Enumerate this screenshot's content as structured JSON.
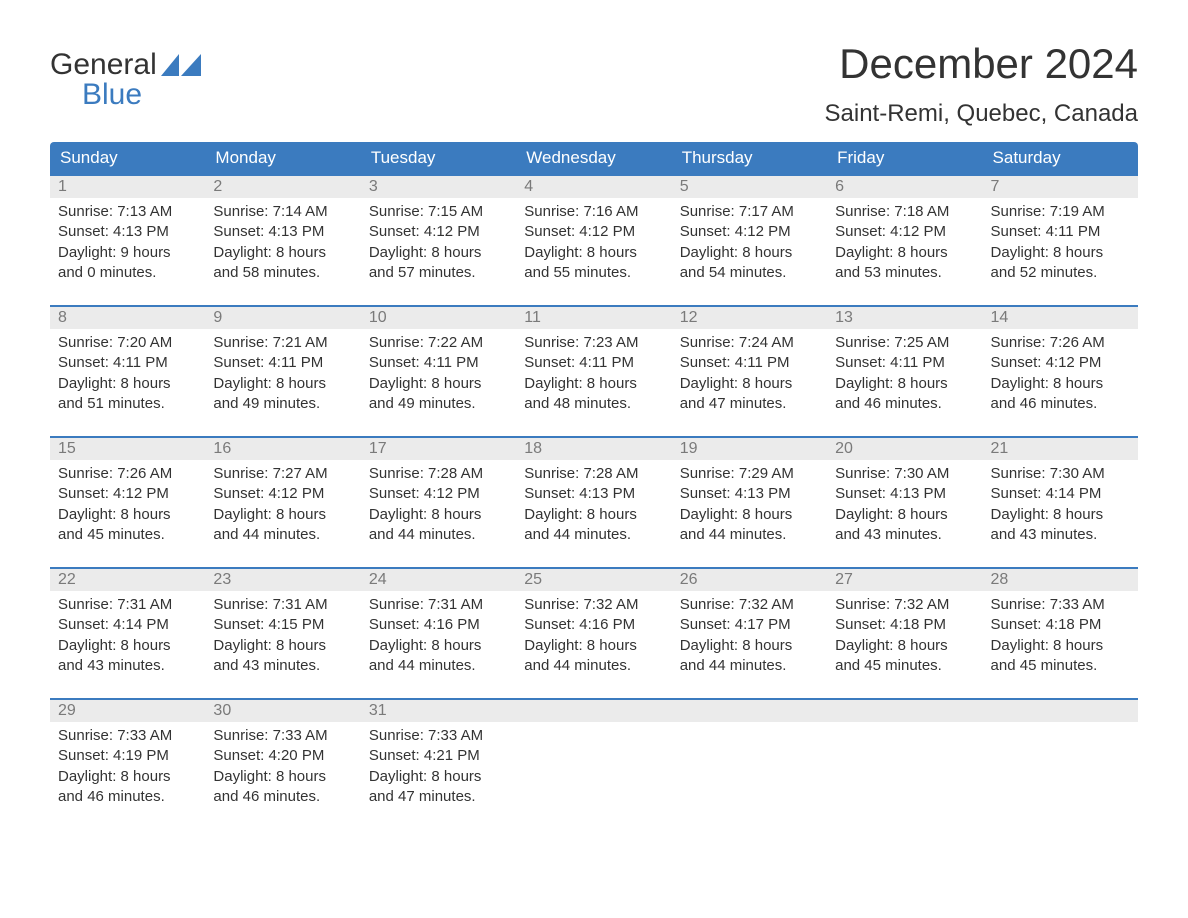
{
  "logo": {
    "line1": "General",
    "line2": "Blue",
    "shape_color": "#3B7BBF",
    "text_color_line1": "#333333"
  },
  "title": "December 2024",
  "subtitle": "Saint-Remi, Quebec, Canada",
  "colors": {
    "header_bg": "#3B7BBF",
    "header_text": "#ffffff",
    "daynum_bg": "#ebebeb",
    "daynum_text": "#7a7a7a",
    "body_text": "#333333",
    "week_top_border": "#3B7BBF",
    "page_bg": "#ffffff"
  },
  "typography": {
    "title_fontsize": 42,
    "subtitle_fontsize": 24,
    "day_header_fontsize": 17,
    "daynum_fontsize": 16,
    "body_fontsize": 15,
    "font_family": "Arial"
  },
  "day_names": [
    "Sunday",
    "Monday",
    "Tuesday",
    "Wednesday",
    "Thursday",
    "Friday",
    "Saturday"
  ],
  "weeks": [
    [
      {
        "num": "1",
        "sunrise": "Sunrise: 7:13 AM",
        "sunset": "Sunset: 4:13 PM",
        "day1": "Daylight: 9 hours",
        "day2": "and 0 minutes."
      },
      {
        "num": "2",
        "sunrise": "Sunrise: 7:14 AM",
        "sunset": "Sunset: 4:13 PM",
        "day1": "Daylight: 8 hours",
        "day2": "and 58 minutes."
      },
      {
        "num": "3",
        "sunrise": "Sunrise: 7:15 AM",
        "sunset": "Sunset: 4:12 PM",
        "day1": "Daylight: 8 hours",
        "day2": "and 57 minutes."
      },
      {
        "num": "4",
        "sunrise": "Sunrise: 7:16 AM",
        "sunset": "Sunset: 4:12 PM",
        "day1": "Daylight: 8 hours",
        "day2": "and 55 minutes."
      },
      {
        "num": "5",
        "sunrise": "Sunrise: 7:17 AM",
        "sunset": "Sunset: 4:12 PM",
        "day1": "Daylight: 8 hours",
        "day2": "and 54 minutes."
      },
      {
        "num": "6",
        "sunrise": "Sunrise: 7:18 AM",
        "sunset": "Sunset: 4:12 PM",
        "day1": "Daylight: 8 hours",
        "day2": "and 53 minutes."
      },
      {
        "num": "7",
        "sunrise": "Sunrise: 7:19 AM",
        "sunset": "Sunset: 4:11 PM",
        "day1": "Daylight: 8 hours",
        "day2": "and 52 minutes."
      }
    ],
    [
      {
        "num": "8",
        "sunrise": "Sunrise: 7:20 AM",
        "sunset": "Sunset: 4:11 PM",
        "day1": "Daylight: 8 hours",
        "day2": "and 51 minutes."
      },
      {
        "num": "9",
        "sunrise": "Sunrise: 7:21 AM",
        "sunset": "Sunset: 4:11 PM",
        "day1": "Daylight: 8 hours",
        "day2": "and 49 minutes."
      },
      {
        "num": "10",
        "sunrise": "Sunrise: 7:22 AM",
        "sunset": "Sunset: 4:11 PM",
        "day1": "Daylight: 8 hours",
        "day2": "and 49 minutes."
      },
      {
        "num": "11",
        "sunrise": "Sunrise: 7:23 AM",
        "sunset": "Sunset: 4:11 PM",
        "day1": "Daylight: 8 hours",
        "day2": "and 48 minutes."
      },
      {
        "num": "12",
        "sunrise": "Sunrise: 7:24 AM",
        "sunset": "Sunset: 4:11 PM",
        "day1": "Daylight: 8 hours",
        "day2": "and 47 minutes."
      },
      {
        "num": "13",
        "sunrise": "Sunrise: 7:25 AM",
        "sunset": "Sunset: 4:11 PM",
        "day1": "Daylight: 8 hours",
        "day2": "and 46 minutes."
      },
      {
        "num": "14",
        "sunrise": "Sunrise: 7:26 AM",
        "sunset": "Sunset: 4:12 PM",
        "day1": "Daylight: 8 hours",
        "day2": "and 46 minutes."
      }
    ],
    [
      {
        "num": "15",
        "sunrise": "Sunrise: 7:26 AM",
        "sunset": "Sunset: 4:12 PM",
        "day1": "Daylight: 8 hours",
        "day2": "and 45 minutes."
      },
      {
        "num": "16",
        "sunrise": "Sunrise: 7:27 AM",
        "sunset": "Sunset: 4:12 PM",
        "day1": "Daylight: 8 hours",
        "day2": "and 44 minutes."
      },
      {
        "num": "17",
        "sunrise": "Sunrise: 7:28 AM",
        "sunset": "Sunset: 4:12 PM",
        "day1": "Daylight: 8 hours",
        "day2": "and 44 minutes."
      },
      {
        "num": "18",
        "sunrise": "Sunrise: 7:28 AM",
        "sunset": "Sunset: 4:13 PM",
        "day1": "Daylight: 8 hours",
        "day2": "and 44 minutes."
      },
      {
        "num": "19",
        "sunrise": "Sunrise: 7:29 AM",
        "sunset": "Sunset: 4:13 PM",
        "day1": "Daylight: 8 hours",
        "day2": "and 44 minutes."
      },
      {
        "num": "20",
        "sunrise": "Sunrise: 7:30 AM",
        "sunset": "Sunset: 4:13 PM",
        "day1": "Daylight: 8 hours",
        "day2": "and 43 minutes."
      },
      {
        "num": "21",
        "sunrise": "Sunrise: 7:30 AM",
        "sunset": "Sunset: 4:14 PM",
        "day1": "Daylight: 8 hours",
        "day2": "and 43 minutes."
      }
    ],
    [
      {
        "num": "22",
        "sunrise": "Sunrise: 7:31 AM",
        "sunset": "Sunset: 4:14 PM",
        "day1": "Daylight: 8 hours",
        "day2": "and 43 minutes."
      },
      {
        "num": "23",
        "sunrise": "Sunrise: 7:31 AM",
        "sunset": "Sunset: 4:15 PM",
        "day1": "Daylight: 8 hours",
        "day2": "and 43 minutes."
      },
      {
        "num": "24",
        "sunrise": "Sunrise: 7:31 AM",
        "sunset": "Sunset: 4:16 PM",
        "day1": "Daylight: 8 hours",
        "day2": "and 44 minutes."
      },
      {
        "num": "25",
        "sunrise": "Sunrise: 7:32 AM",
        "sunset": "Sunset: 4:16 PM",
        "day1": "Daylight: 8 hours",
        "day2": "and 44 minutes."
      },
      {
        "num": "26",
        "sunrise": "Sunrise: 7:32 AM",
        "sunset": "Sunset: 4:17 PM",
        "day1": "Daylight: 8 hours",
        "day2": "and 44 minutes."
      },
      {
        "num": "27",
        "sunrise": "Sunrise: 7:32 AM",
        "sunset": "Sunset: 4:18 PM",
        "day1": "Daylight: 8 hours",
        "day2": "and 45 minutes."
      },
      {
        "num": "28",
        "sunrise": "Sunrise: 7:33 AM",
        "sunset": "Sunset: 4:18 PM",
        "day1": "Daylight: 8 hours",
        "day2": "and 45 minutes."
      }
    ],
    [
      {
        "num": "29",
        "sunrise": "Sunrise: 7:33 AM",
        "sunset": "Sunset: 4:19 PM",
        "day1": "Daylight: 8 hours",
        "day2": "and 46 minutes."
      },
      {
        "num": "30",
        "sunrise": "Sunrise: 7:33 AM",
        "sunset": "Sunset: 4:20 PM",
        "day1": "Daylight: 8 hours",
        "day2": "and 46 minutes."
      },
      {
        "num": "31",
        "sunrise": "Sunrise: 7:33 AM",
        "sunset": "Sunset: 4:21 PM",
        "day1": "Daylight: 8 hours",
        "day2": "and 47 minutes."
      },
      {
        "empty": true
      },
      {
        "empty": true
      },
      {
        "empty": true
      },
      {
        "empty": true
      }
    ]
  ]
}
